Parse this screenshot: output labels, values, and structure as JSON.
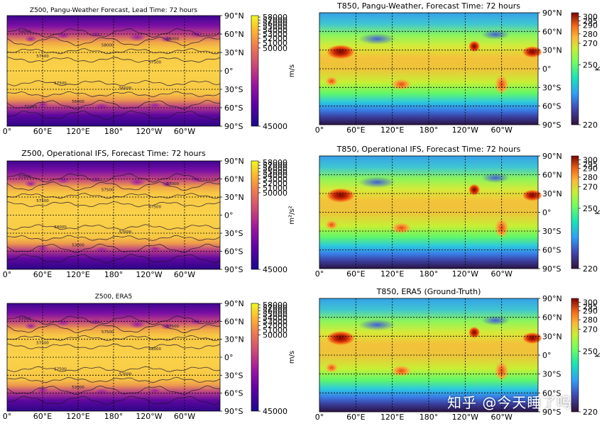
{
  "chart_data": [
    {
      "type": "heatmap",
      "title": "Z500, Pangu-Weather Forecast, Lead Time: 72 hours",
      "variable": "z500",
      "x_ticks": [
        "0°",
        "60°E",
        "120°E",
        "180°",
        "120°W",
        "60°W"
      ],
      "y_ticks": [
        "90°N",
        "60°N",
        "30°N",
        "0°",
        "30°S",
        "60°S",
        "90°S"
      ],
      "colorbar_ticks": [
        "58000",
        "57000",
        "56000",
        "55000",
        "54000",
        "53000",
        "52000",
        "51000",
        "50000",
        "45000"
      ],
      "colorbar_label": "m/s",
      "colorbar_range": [
        45000,
        58500
      ],
      "colormap": "plasma",
      "contour_labels": [
        "54000",
        "56000",
        "57500",
        "58000",
        "57500",
        "57500",
        "56000",
        "56000",
        "51000"
      ]
    },
    {
      "type": "heatmap",
      "title": "T850, Pangu-Weather, Forecast Time: 72 hours",
      "variable": "t850",
      "x_ticks": [
        "0°",
        "60°E",
        "120°E",
        "180°",
        "120°W",
        "60°W"
      ],
      "y_ticks": [
        "90°N",
        "60°N",
        "30°N",
        "0°",
        "30°S",
        "60°S",
        "90°S"
      ],
      "colorbar_ticks": [
        "300",
        "295",
        "290",
        "280",
        "270",
        "250",
        "220"
      ],
      "colorbar_label": "K",
      "colorbar_range": [
        220,
        305
      ],
      "colormap": "turbo"
    },
    {
      "type": "heatmap",
      "title": "Z500, Operational IFS, Forecast Time: 72 hours",
      "variable": "z500",
      "x_ticks": [
        "0°",
        "60°E",
        "120°E",
        "180°",
        "120°W",
        "60°W"
      ],
      "y_ticks": [
        "90°N",
        "60°N",
        "30°N",
        "0°",
        "30°S",
        "60°S",
        "90°S"
      ],
      "colorbar_ticks": [
        "58000",
        "57000",
        "56000",
        "55000",
        "54000",
        "53000",
        "52000",
        "51000",
        "50000",
        "45000"
      ],
      "colorbar_label": "m²/s²",
      "colorbar_range": [
        45000,
        58500
      ],
      "colormap": "plasma",
      "contour_labels": [
        "57500",
        "57000",
        "57500",
        "57500",
        "57500",
        "58000",
        "57000",
        "53000"
      ]
    },
    {
      "type": "heatmap",
      "title": "T850, Operational IFS, Forecast Time: 72 hours",
      "variable": "t850",
      "x_ticks": [
        "0°",
        "60°E",
        "120°E",
        "180°",
        "120°W",
        "60°W"
      ],
      "y_ticks": [
        "90°N",
        "60°N",
        "30°N",
        "0°",
        "30°S",
        "60°S",
        "90°S"
      ],
      "colorbar_ticks": [
        "300",
        "295",
        "290",
        "280",
        "270",
        "250",
        "220"
      ],
      "colorbar_label": "K",
      "colorbar_range": [
        220,
        305
      ],
      "colormap": "turbo"
    },
    {
      "type": "heatmap",
      "title": "Z500, ERA5",
      "variable": "z500",
      "x_ticks": [
        "0°",
        "60°E",
        "120°E",
        "180°",
        "120°W",
        "60°W"
      ],
      "y_ticks": [
        "90°N",
        "60°N",
        "30°N",
        "0°",
        "30°S",
        "60°S",
        "90°S"
      ],
      "colorbar_ticks": [
        "58000",
        "57000",
        "56000",
        "55000",
        "54000",
        "53000",
        "52000",
        "51000",
        "50000",
        "45000"
      ],
      "colorbar_label": "m/s",
      "colorbar_range": [
        45000,
        58500
      ],
      "colormap": "plasma",
      "contour_labels": [
        "57500",
        "57500",
        "57500",
        "57500",
        "58000",
        "57500",
        "57000",
        "53000"
      ]
    },
    {
      "type": "heatmap",
      "title": "T850, ERA5 (Ground-Truth)",
      "variable": "t850",
      "x_ticks": [
        "0°",
        "60°E",
        "120°E",
        "180°",
        "120°W",
        "60°W"
      ],
      "y_ticks": [
        "90°N",
        "60°N",
        "30°N",
        "0°",
        "30°S",
        "60°S",
        "90°S"
      ],
      "colorbar_ticks": [
        "300",
        "295",
        "290",
        "280",
        "270",
        "250",
        "220"
      ],
      "colorbar_label": "K",
      "colorbar_range": [
        220,
        305
      ],
      "colormap": "turbo"
    }
  ],
  "watermark": "知乎 @今天睡了吗"
}
